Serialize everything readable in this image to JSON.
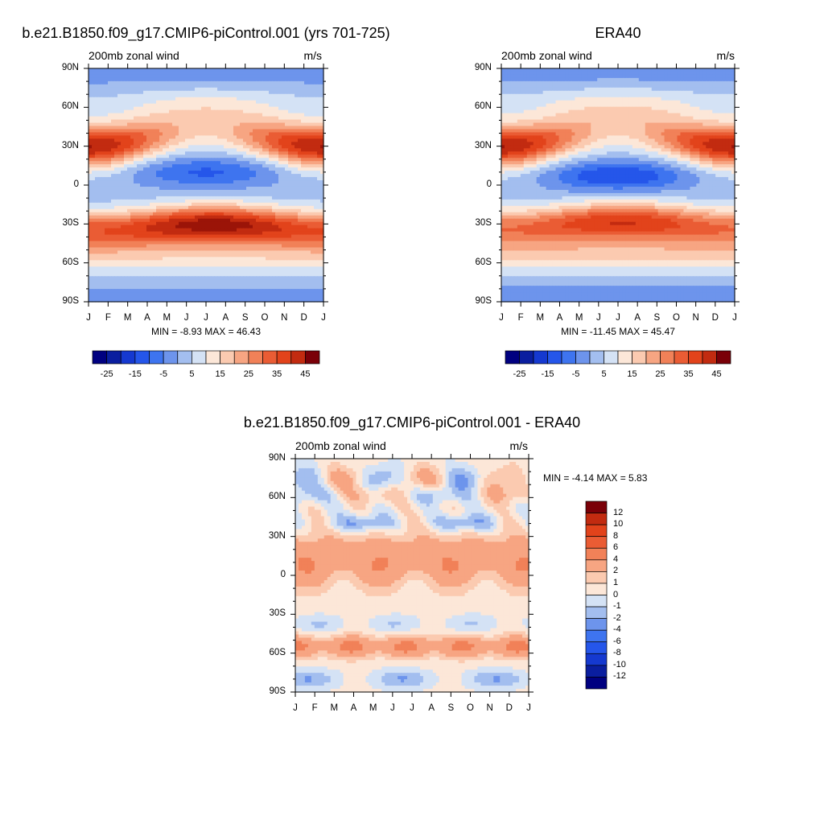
{
  "panels": [
    {
      "title": "b.e21.B1850.f09_g17.CMIP6-piControl.001 (yrs 701-725)",
      "left_label": "200mb zonal wind",
      "right_label": "m/s",
      "stats": "MIN =  -8.93 MAX =  46.43"
    },
    {
      "title": "ERA40",
      "left_label": "200mb zonal wind",
      "right_label": "m/s",
      "stats": "MIN = -11.45 MAX =  45.47"
    },
    {
      "title": "b.e21.B1850.f09_g17.CMIP6-piControl.001 - ERA40",
      "left_label": "200mb zonal wind",
      "right_label": "m/s",
      "stats": "MIN =  -4.14 MAX =   5.83"
    }
  ],
  "chart_data": [
    {
      "type": "heatmap",
      "title": "b.e21.B1850.f09_g17.CMIP6-piControl.001 (yrs 701-725)",
      "variable": "200mb zonal wind",
      "units": "m/s",
      "x_tick_labels": [
        "J",
        "F",
        "M",
        "A",
        "M",
        "J",
        "J",
        "A",
        "S",
        "O",
        "N",
        "D",
        "J"
      ],
      "y_tick_labels": [
        "90N",
        "60N",
        "30N",
        "0",
        "30S",
        "60S",
        "90S"
      ],
      "ylim": [
        -90,
        90
      ],
      "min": -8.93,
      "max": 46.43,
      "colorbar_labels": [
        "-25",
        "-15",
        "-5",
        "5",
        "15",
        "25",
        "35",
        "45"
      ],
      "colorbar_levels": [
        -30,
        -25,
        -20,
        -15,
        -10,
        -5,
        0,
        5,
        10,
        15,
        20,
        25,
        30,
        35,
        40,
        45,
        50
      ],
      "features": [
        {
          "kind": "jet",
          "lat": 30,
          "month": 1.3,
          "value": 45
        },
        {
          "kind": "jet",
          "lat": 30,
          "month": 12.5,
          "value": 42
        },
        {
          "kind": "jet",
          "lat": -30,
          "month": 7.3,
          "value": 46
        },
        {
          "kind": "easterly",
          "lat": 10,
          "month": 7.3,
          "value": -8
        }
      ]
    },
    {
      "type": "heatmap",
      "title": "ERA40",
      "variable": "200mb zonal wind",
      "units": "m/s",
      "x_tick_labels": [
        "J",
        "F",
        "M",
        "A",
        "M",
        "J",
        "J",
        "A",
        "S",
        "O",
        "N",
        "D",
        "J"
      ],
      "y_tick_labels": [
        "90N",
        "60N",
        "30N",
        "0",
        "30S",
        "60S",
        "90S"
      ],
      "ylim": [
        -90,
        90
      ],
      "min": -11.45,
      "max": 45.47,
      "colorbar_labels": [
        "-25",
        "-15",
        "-5",
        "5",
        "15",
        "25",
        "35",
        "45"
      ],
      "colorbar_levels": [
        -30,
        -25,
        -20,
        -15,
        -10,
        -5,
        0,
        5,
        10,
        15,
        20,
        25,
        30,
        35,
        40,
        45,
        50
      ],
      "features": [
        {
          "kind": "jet",
          "lat": 30,
          "month": 1.3,
          "value": 45
        },
        {
          "kind": "jet",
          "lat": 30,
          "month": 12.5,
          "value": 41
        },
        {
          "kind": "jet",
          "lat": -28,
          "month": 7.2,
          "value": 40
        },
        {
          "kind": "easterly",
          "lat": 7,
          "month": 7.2,
          "value": -11
        }
      ]
    },
    {
      "type": "heatmap",
      "title": "b.e21.B1850.f09_g17.CMIP6-piControl.001 - ERA40",
      "variable": "200mb zonal wind",
      "units": "m/s",
      "x_tick_labels": [
        "J",
        "F",
        "M",
        "A",
        "M",
        "J",
        "J",
        "A",
        "S",
        "O",
        "N",
        "D",
        "J"
      ],
      "y_tick_labels": [
        "90N",
        "60N",
        "30N",
        "0",
        "30S",
        "60S",
        "90S"
      ],
      "ylim": [
        -90,
        90
      ],
      "min": -4.14,
      "max": 5.83,
      "colorbar_labels": [
        "12",
        "10",
        "8",
        "6",
        "4",
        "2",
        "1",
        "0",
        "-1",
        "-2",
        "-4",
        "-6",
        "-8",
        "-10",
        "-12"
      ],
      "colorbar_levels": [
        14,
        12,
        10,
        8,
        6,
        4,
        2,
        1,
        0,
        -1,
        -2,
        -4,
        -6,
        -8,
        -10,
        -12,
        -14
      ]
    }
  ],
  "colors": {
    "diverging_17": [
      "#000080",
      "#0a1e9f",
      "#1539d0",
      "#2556ea",
      "#3e74ef",
      "#6d94ec",
      "#a3beef",
      "#d4e2f5",
      "#fce7d8",
      "#fbcab0",
      "#f7a582",
      "#f18158",
      "#ea5c34",
      "#e2431b",
      "#c22b10",
      "#9b1408",
      "#76000e"
    ],
    "diverging_16": [
      "#000080",
      "#0a1e9f",
      "#1539d0",
      "#2556ea",
      "#3e74ef",
      "#6d94ec",
      "#a3beef",
      "#d4e2f5",
      "#fce7d8",
      "#fbcab0",
      "#f7a582",
      "#f18158",
      "#ea5c34",
      "#e2431b",
      "#c22b10",
      "#7a0008"
    ]
  }
}
